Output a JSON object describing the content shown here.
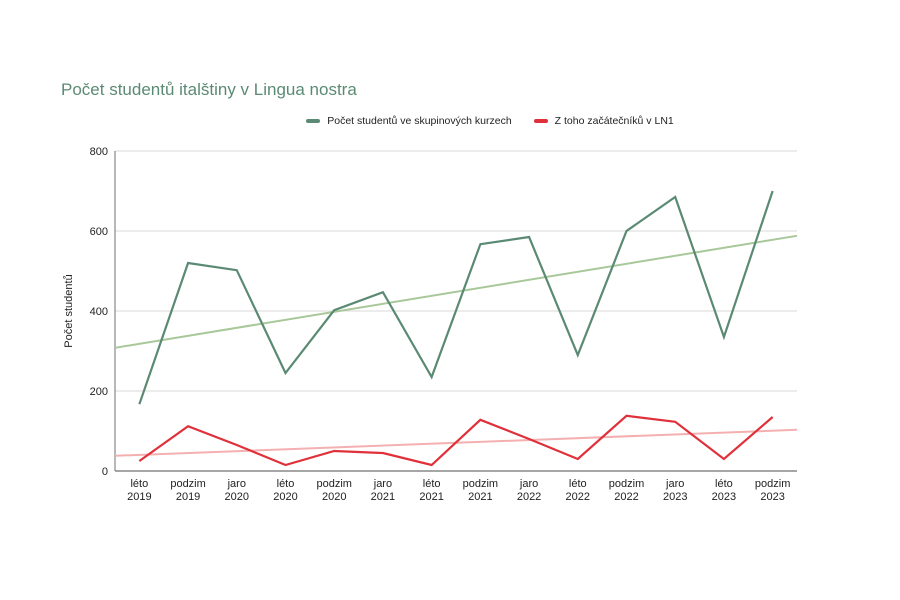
{
  "chart_data": {
    "type": "line",
    "title": "Počet studentů italštiny v Lingua nostra",
    "xlabel": "",
    "ylabel": "Počet studentů",
    "ylim": [
      0,
      800
    ],
    "yticks": [
      0,
      200,
      400,
      600,
      800
    ],
    "grid": true,
    "legend_position": "top",
    "categories": [
      [
        "léto",
        "2019"
      ],
      [
        "podzim",
        "2019"
      ],
      [
        "jaro",
        "2020"
      ],
      [
        "léto",
        "2020"
      ],
      [
        "podzim",
        "2020"
      ],
      [
        "jaro",
        "2021"
      ],
      [
        "léto",
        "2021"
      ],
      [
        "podzim",
        "2021"
      ],
      [
        "jaro",
        "2022"
      ],
      [
        "léto",
        "2022"
      ],
      [
        "podzim",
        "2022"
      ],
      [
        "jaro",
        "2023"
      ],
      [
        "léto",
        "2023"
      ],
      [
        "podzim",
        "2023"
      ]
    ],
    "series": [
      {
        "name": "Počet studentů ve skupinových kurzech",
        "color": "#5b8a74",
        "trend_color": "#a8c89a",
        "values": [
          167,
          520,
          502,
          245,
          402,
          447,
          235,
          567,
          585,
          290,
          600,
          685,
          335,
          700
        ],
        "trendline": [
          308,
          588
        ]
      },
      {
        "name": "Z toho začátečníků v LN1",
        "color": "#e0303a",
        "trend_color": "#f4b0b0",
        "values": [
          25,
          112,
          65,
          15,
          50,
          45,
          15,
          128,
          80,
          30,
          138,
          123,
          30,
          135
        ],
        "trendline": [
          38,
          103
        ]
      }
    ]
  }
}
